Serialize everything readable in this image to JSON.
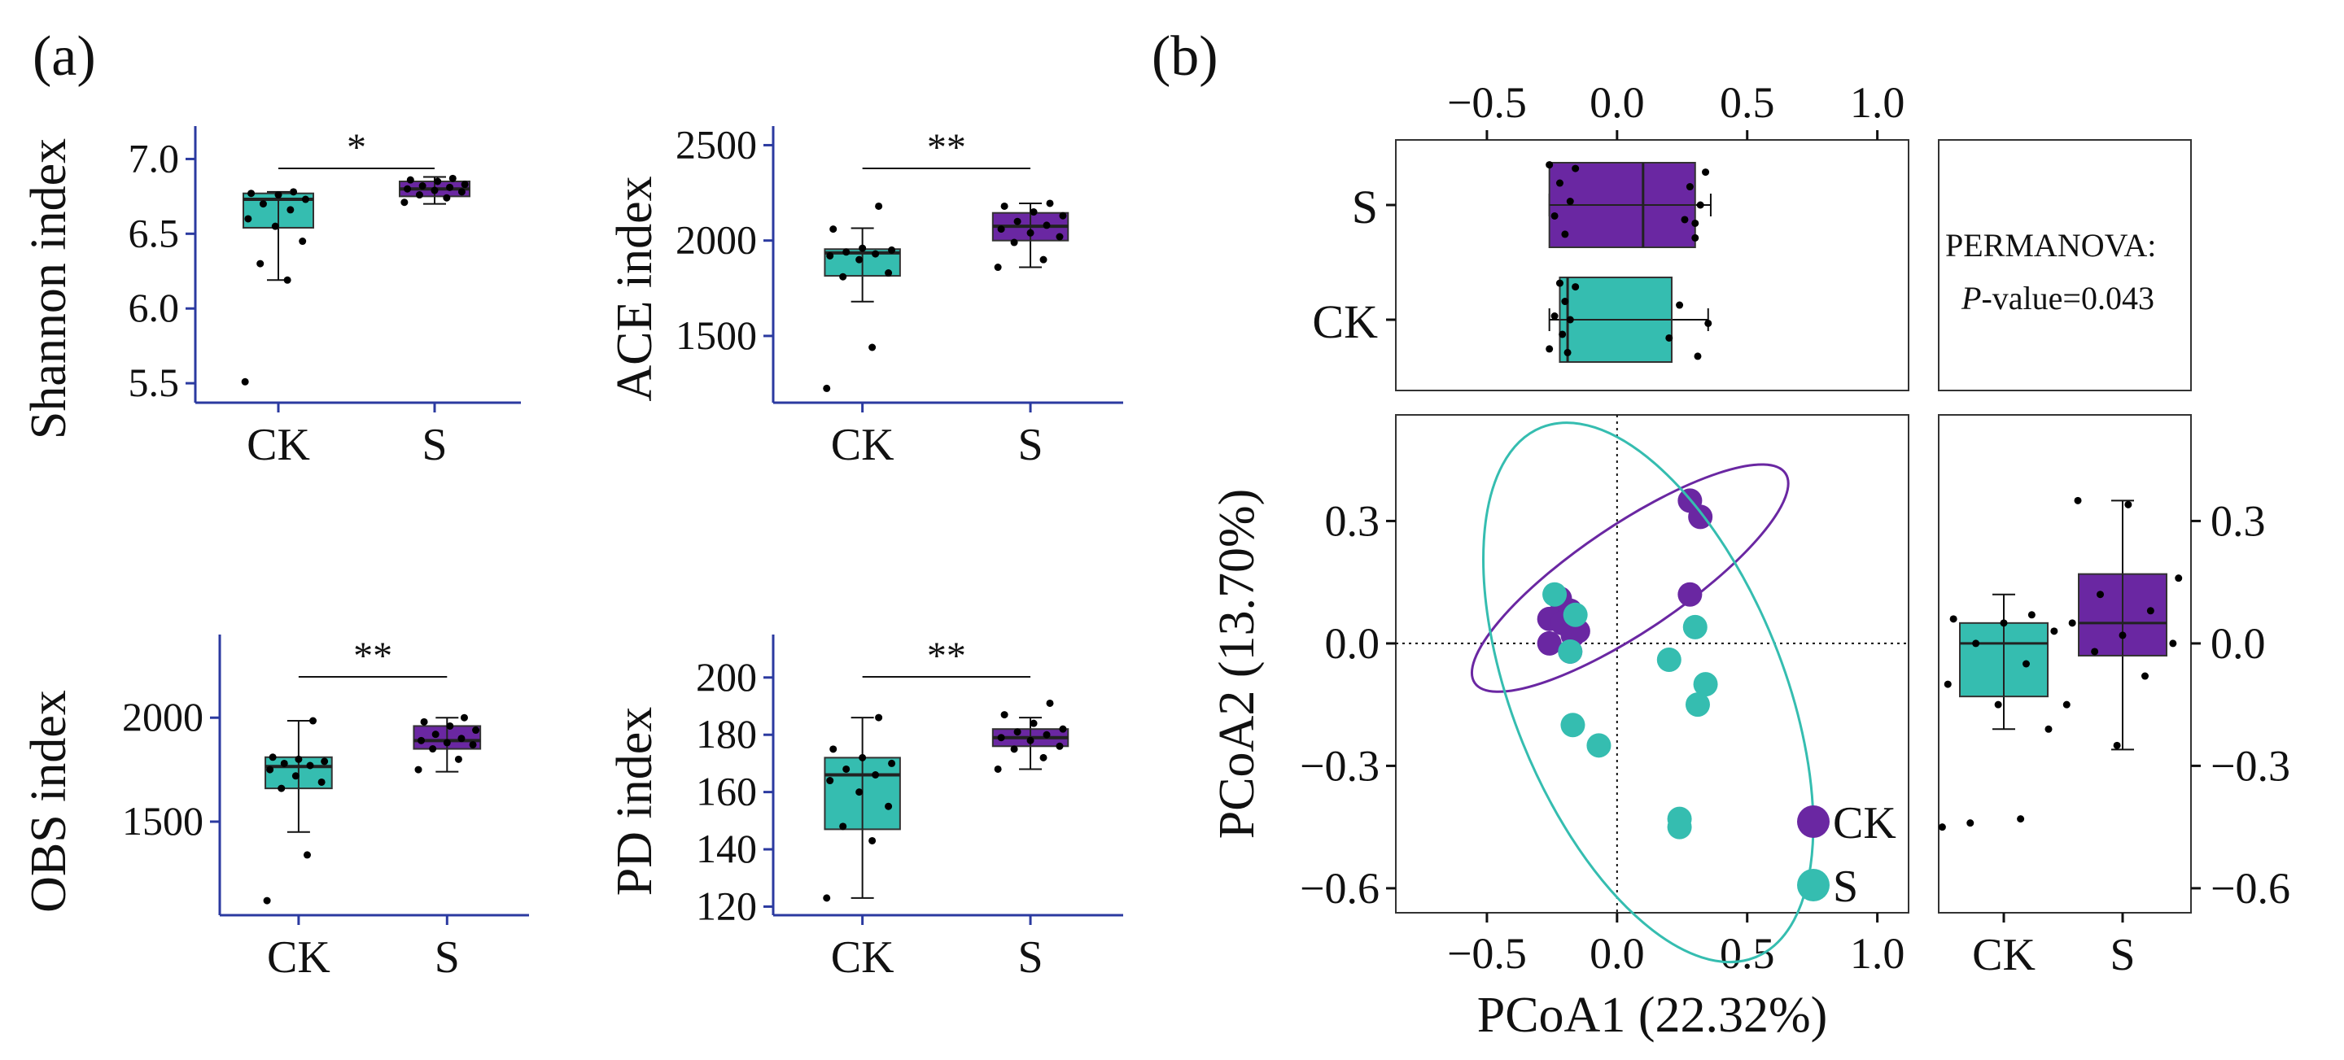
{
  "colors": {
    "CK": "#35bdb0",
    "S": "#6a27a2",
    "axis_a": "#2b3aa0",
    "frame_b": "#333333"
  },
  "panel_labels": {
    "a": "(a)",
    "b": "(b)"
  },
  "chart_data": [
    {
      "id": "shannon",
      "type": "box",
      "ylabel": "Shannon index",
      "categories": [
        "CK",
        "S"
      ],
      "ylim": [
        5.37,
        7.22
      ],
      "yticks": [
        5.5,
        6.0,
        6.5,
        7.0
      ],
      "ytick_labels": [
        "5.5",
        "6.0",
        "6.5",
        "7.0"
      ],
      "significance": "*",
      "groups": [
        {
          "name": "CK",
          "q1": 6.54,
          "median": 6.73,
          "q3": 6.77,
          "whisker_low": 6.19,
          "whisker_high": 6.78,
          "points": [
            5.51,
            6.19,
            6.3,
            6.45,
            6.55,
            6.6,
            6.66,
            6.7,
            6.73,
            6.76,
            6.77,
            6.78
          ]
        },
        {
          "name": "S",
          "q1": 6.75,
          "median": 6.8,
          "q3": 6.85,
          "whisker_low": 6.7,
          "whisker_high": 6.88,
          "points": [
            6.71,
            6.74,
            6.76,
            6.78,
            6.79,
            6.8,
            6.81,
            6.82,
            6.83,
            6.85,
            6.86,
            6.87
          ]
        }
      ]
    },
    {
      "id": "ace",
      "type": "box",
      "ylabel": "ACE index",
      "categories": [
        "CK",
        "S"
      ],
      "ylim": [
        1150,
        2600
      ],
      "yticks": [
        1500,
        2000,
        2500
      ],
      "ytick_labels": [
        "1500",
        "2000",
        "2500"
      ],
      "significance": "**",
      "groups": [
        {
          "name": "CK",
          "q1": 1815,
          "median": 1935,
          "q3": 1955,
          "whisker_low": 1680,
          "whisker_high": 2065,
          "points": [
            1225,
            1440,
            1810,
            1830,
            1900,
            1920,
            1930,
            1940,
            1950,
            1960,
            2060,
            2180
          ]
        },
        {
          "name": "S",
          "q1": 2000,
          "median": 2075,
          "q3": 2145,
          "whisker_low": 1860,
          "whisker_high": 2195,
          "points": [
            1860,
            1900,
            1990,
            2020,
            2040,
            2060,
            2080,
            2100,
            2130,
            2150,
            2180,
            2195
          ]
        }
      ]
    },
    {
      "id": "obs",
      "type": "box",
      "ylabel": "OBS index",
      "categories": [
        "CK",
        "S"
      ],
      "ylim": [
        1050,
        2400
      ],
      "yticks": [
        1500,
        2000
      ],
      "ytick_labels": [
        "1500",
        "2000"
      ],
      "significance": "**",
      "groups": [
        {
          "name": "CK",
          "q1": 1660,
          "median": 1765,
          "q3": 1810,
          "whisker_low": 1450,
          "whisker_high": 1985,
          "points": [
            1120,
            1340,
            1660,
            1690,
            1720,
            1750,
            1770,
            1780,
            1790,
            1800,
            1810,
            1985
          ]
        },
        {
          "name": "S",
          "q1": 1850,
          "median": 1890,
          "q3": 1960,
          "whisker_low": 1740,
          "whisker_high": 2000,
          "points": [
            1750,
            1800,
            1850,
            1870,
            1880,
            1890,
            1900,
            1920,
            1940,
            1960,
            1980,
            2000
          ]
        }
      ]
    },
    {
      "id": "pd",
      "type": "box",
      "ylabel": "PD index",
      "categories": [
        "CK",
        "S"
      ],
      "ylim": [
        117,
        215
      ],
      "yticks": [
        120,
        140,
        160,
        180,
        200
      ],
      "ytick_labels": [
        "120",
        "140",
        "160",
        "180",
        "200"
      ],
      "significance": "**",
      "groups": [
        {
          "name": "CK",
          "q1": 147,
          "median": 166,
          "q3": 172,
          "whisker_low": 123,
          "whisker_high": 186,
          "points": [
            123,
            143,
            148,
            155,
            160,
            164,
            166,
            168,
            170,
            172,
            175,
            186
          ]
        },
        {
          "name": "S",
          "q1": 176,
          "median": 179,
          "q3": 182,
          "whisker_low": 168,
          "whisker_high": 186,
          "points": [
            168,
            172,
            175,
            176,
            178,
            179,
            180,
            181,
            182,
            184,
            187,
            191
          ]
        }
      ]
    },
    {
      "id": "pcoa",
      "type": "scatter",
      "xlabel": "PCoA1 (22.32%)",
      "ylabel": "PCoA2 (13.70%)",
      "xlim": [
        -0.85,
        1.12
      ],
      "ylim": [
        -0.66,
        0.56
      ],
      "xticks": [
        -0.5,
        0.0,
        0.5,
        1.0
      ],
      "xtick_labels": [
        "−0.5",
        "0.0",
        "0.5",
        "1.0"
      ],
      "yticks": [
        -0.6,
        -0.3,
        0.0,
        0.3
      ],
      "ytick_labels": [
        "−0.6",
        "−0.3",
        "0.0",
        "0.3"
      ],
      "legend": [
        {
          "name": "CK",
          "color_key": "S"
        },
        {
          "name": "S",
          "color_key": "CK"
        }
      ],
      "series": [
        {
          "name": "purple",
          "color_key": "S",
          "x": [
            0.28,
            0.32,
            -0.22,
            -0.18,
            -0.26,
            -0.21,
            -0.15,
            -0.17,
            -0.26,
            -0.18,
            0.28
          ],
          "y": [
            0.35,
            0.31,
            0.11,
            0.08,
            0.06,
            0.05,
            0.03,
            0.02,
            0.0,
            -0.02,
            0.12
          ],
          "ellipse": {
            "cx": 0.05,
            "cy": 0.16,
            "rx": 0.72,
            "ry": 0.13,
            "angle_deg": -34
          }
        },
        {
          "name": "teal",
          "color_key": "CK",
          "x": [
            -0.24,
            -0.16,
            -0.18,
            -0.17,
            -0.07,
            0.3,
            0.2,
            0.34,
            0.31,
            0.24,
            0.24
          ],
          "y": [
            0.12,
            0.07,
            -0.02,
            -0.2,
            -0.25,
            0.04,
            -0.04,
            -0.1,
            -0.15,
            -0.43,
            -0.45
          ],
          "ellipse": {
            "cx": 0.12,
            "cy": -0.12,
            "rx": 0.52,
            "ry": 0.7,
            "angle_deg": -22
          }
        }
      ]
    },
    {
      "id": "pcoa1-box",
      "type": "box",
      "orientation": "horizontal",
      "categories": [
        "S",
        "CK"
      ],
      "xlim": [
        -0.85,
        1.12
      ],
      "xticks": [
        -0.5,
        0.0,
        0.5,
        1.0
      ],
      "xtick_labels": [
        "−0.5",
        "0.0",
        "0.5",
        "1.0"
      ],
      "annotation": {
        "line1": "PERMANOVA:",
        "line2_italic": "P",
        "line2_rest": "-value=0.043"
      },
      "groups": [
        {
          "name": "S",
          "q1": -0.26,
          "median": 0.1,
          "q3": 0.3,
          "whisker_low": -0.26,
          "whisker_high": 0.36,
          "points": [
            -0.26,
            -0.24,
            -0.22,
            -0.2,
            -0.18,
            -0.16,
            0.26,
            0.28,
            0.3,
            0.32,
            0.34,
            0.3
          ]
        },
        {
          "name": "CK",
          "q1": -0.22,
          "median": -0.19,
          "q3": 0.21,
          "whisker_low": -0.26,
          "whisker_high": 0.35,
          "points": [
            -0.26,
            -0.24,
            -0.22,
            -0.21,
            -0.2,
            -0.19,
            -0.18,
            -0.16,
            0.2,
            0.24,
            0.31,
            0.35
          ]
        }
      ]
    },
    {
      "id": "pcoa2-box",
      "type": "box",
      "categories": [
        "CK",
        "S"
      ],
      "ylim": [
        -0.66,
        0.56
      ],
      "yticks": [
        -0.6,
        -0.3,
        0.0,
        0.3
      ],
      "ytick_labels": [
        "−0.6",
        "−0.3",
        "0.0",
        "0.3"
      ],
      "groups": [
        {
          "name": "CK",
          "q1": -0.13,
          "median": 0.0,
          "q3": 0.05,
          "whisker_low": -0.21,
          "whisker_high": 0.12,
          "points": [
            -0.45,
            -0.43,
            -0.44,
            -0.21,
            -0.15,
            -0.1,
            -0.05,
            0.0,
            0.03,
            0.05,
            0.06,
            0.07
          ]
        },
        {
          "name": "S",
          "q1": -0.03,
          "median": 0.05,
          "q3": 0.17,
          "whisker_low": -0.26,
          "whisker_high": 0.35,
          "points": [
            -0.25,
            -0.15,
            -0.08,
            -0.02,
            0.0,
            0.02,
            0.05,
            0.08,
            0.12,
            0.16,
            0.34,
            0.35
          ]
        }
      ]
    }
  ]
}
